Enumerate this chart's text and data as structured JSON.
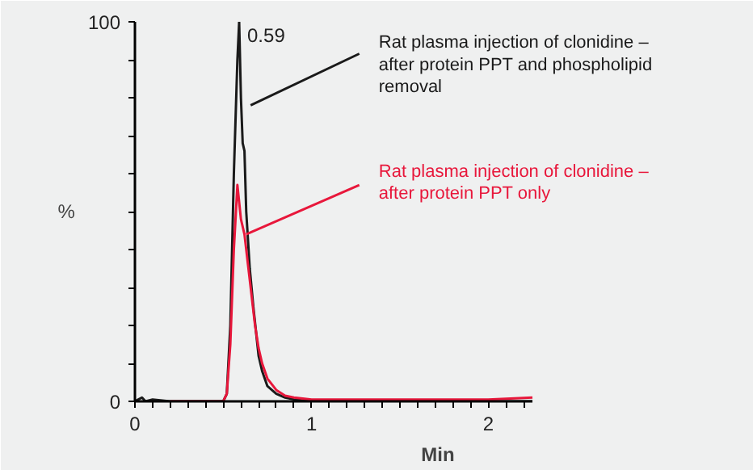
{
  "chart_data": {
    "type": "line",
    "xlabel": "Min",
    "ylabel": "%",
    "xlim": [
      0,
      2.25
    ],
    "ylim": [
      0,
      100
    ],
    "xticks": [
      0,
      {
        "value": 0.1,
        "label": null
      },
      {
        "value": 0.2,
        "label": null
      },
      {
        "value": 0.3,
        "label": null
      },
      {
        "value": 0.4,
        "label": null
      },
      {
        "value": 0.5,
        "label": null
      },
      {
        "value": 0.6,
        "label": null
      },
      {
        "value": 0.7,
        "label": null
      },
      {
        "value": 0.8,
        "label": null
      },
      {
        "value": 0.9,
        "label": null
      },
      1,
      {
        "value": 1.1,
        "label": null
      },
      {
        "value": 1.2,
        "label": null
      },
      {
        "value": 1.3,
        "label": null
      },
      {
        "value": 1.4,
        "label": null
      },
      {
        "value": 1.5,
        "label": null
      },
      {
        "value": 1.6,
        "label": null
      },
      {
        "value": 1.7,
        "label": null
      },
      {
        "value": 1.8,
        "label": null
      },
      {
        "value": 1.9,
        "label": null
      },
      2,
      {
        "value": 2.1,
        "label": null
      },
      {
        "value": 2.2,
        "label": null
      }
    ],
    "yticks": [
      0,
      {
        "value": 10,
        "label": null
      },
      {
        "value": 20,
        "label": null
      },
      {
        "value": 30,
        "label": null
      },
      {
        "value": 40,
        "label": null
      },
      {
        "value": 50,
        "label": null
      },
      {
        "value": 60,
        "label": null
      },
      {
        "value": 70,
        "label": null
      },
      {
        "value": 80,
        "label": null
      },
      {
        "value": 90,
        "label": null
      },
      100
    ],
    "grid": false,
    "legend": false,
    "marker": "none",
    "line_style": "solid",
    "annotations": [
      {
        "text": "0.59",
        "x": 0.59,
        "y": 100
      }
    ],
    "series": [
      {
        "name": "Rat plasma injection of clonidine – after protein PPT and phospholipid removal",
        "color": "#1a1a1a",
        "x": [
          0,
          0.02,
          0.04,
          0.06,
          0.1,
          0.2,
          0.4,
          0.5,
          0.52,
          0.54,
          0.56,
          0.58,
          0.59,
          0.6,
          0.61,
          0.62,
          0.63,
          0.65,
          0.67,
          0.7,
          0.72,
          0.75,
          0.8,
          0.85,
          0.9,
          1.0,
          1.5,
          2.0,
          2.25
        ],
        "values": [
          0,
          0.5,
          1,
          0,
          0.5,
          0,
          0,
          0,
          2,
          20,
          60,
          90,
          100,
          80,
          68,
          66,
          50,
          35,
          25,
          12,
          8,
          4,
          2,
          1,
          0.5,
          0,
          0,
          0,
          0
        ]
      },
      {
        "name": "Rat plasma injection of clonidine – after protein PPT only",
        "color": "#e8173b",
        "x": [
          0.2,
          0.5,
          0.52,
          0.54,
          0.56,
          0.58,
          0.6,
          0.62,
          0.64,
          0.66,
          0.68,
          0.7,
          0.72,
          0.75,
          0.8,
          0.85,
          0.9,
          1.0,
          1.5,
          2.0,
          2.25
        ],
        "values": [
          0,
          0,
          2,
          15,
          40,
          57,
          48,
          44,
          36,
          28,
          20,
          14,
          10,
          6,
          3,
          1.5,
          1,
          0.5,
          0.5,
          0.5,
          1
        ]
      }
    ]
  }
}
